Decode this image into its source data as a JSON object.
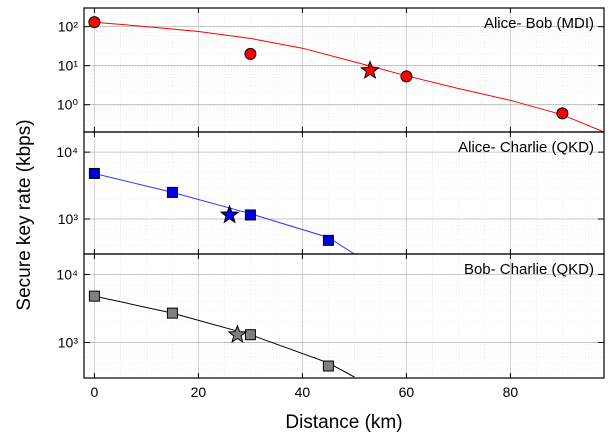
{
  "chart_data": {
    "type": "scatter",
    "xlabel": "Distance (km)",
    "ylabel": "Secure key rate (kbps)",
    "xlim": [
      -2,
      98
    ],
    "x_ticks": [
      0,
      20,
      40,
      60,
      80
    ],
    "x_tick_labels": [
      "0",
      "20",
      "40",
      "60",
      "80"
    ],
    "grid": true,
    "panels": [
      {
        "label": "Alice- Bob (MDI)",
        "yscale": "log",
        "ylim": [
          0.2,
          300
        ],
        "y_ticks": [
          1,
          10,
          100
        ],
        "y_tick_labels": [
          "10⁰",
          "10¹",
          "10²"
        ],
        "color": "#ff0000",
        "line_color": "#ff0000",
        "marker": "circle",
        "points": {
          "x": [
            0,
            30,
            60,
            90
          ],
          "y": [
            130,
            20,
            5.3,
            0.6
          ]
        },
        "star": {
          "x": 53,
          "y": 7.5
        },
        "fit": {
          "x": [
            0,
            10,
            20,
            30,
            40,
            50,
            60,
            70,
            80,
            90,
            98
          ],
          "y": [
            130,
            100,
            75,
            50,
            28,
            12.5,
            5.5,
            2.6,
            1.3,
            0.55,
            0.2
          ]
        }
      },
      {
        "label": "Alice- Charlie (QKD)",
        "yscale": "log",
        "ylim": [
          300,
          20000
        ],
        "y_ticks": [
          1000,
          10000
        ],
        "y_tick_labels": [
          "10³",
          "10⁴"
        ],
        "color": "#0000e0",
        "line_color": "#3333ff",
        "marker": "square",
        "points": {
          "x": [
            0,
            15,
            30,
            45
          ],
          "y": [
            4800,
            2500,
            1150,
            480
          ]
        },
        "star": {
          "x": 26,
          "y": 1150
        },
        "fit": {
          "x": [
            0,
            15,
            30,
            45,
            50
          ],
          "y": [
            4800,
            2500,
            1200,
            530,
            300
          ]
        }
      },
      {
        "label": "Bob- Charlie (QKD)",
        "yscale": "log",
        "ylim": [
          300,
          20000
        ],
        "y_ticks": [
          1000,
          10000
        ],
        "y_tick_labels": [
          "10³",
          "10⁴"
        ],
        "color": "#808080",
        "line_color": "#000000",
        "marker": "square",
        "points": {
          "x": [
            0,
            15,
            30,
            45
          ],
          "y": [
            4800,
            2700,
            1300,
            450
          ]
        },
        "star": {
          "x": 27.5,
          "y": 1300
        },
        "fit": {
          "x": [
            0,
            15,
            30,
            45,
            50
          ],
          "y": [
            4800,
            2700,
            1300,
            500,
            310
          ]
        }
      }
    ]
  }
}
